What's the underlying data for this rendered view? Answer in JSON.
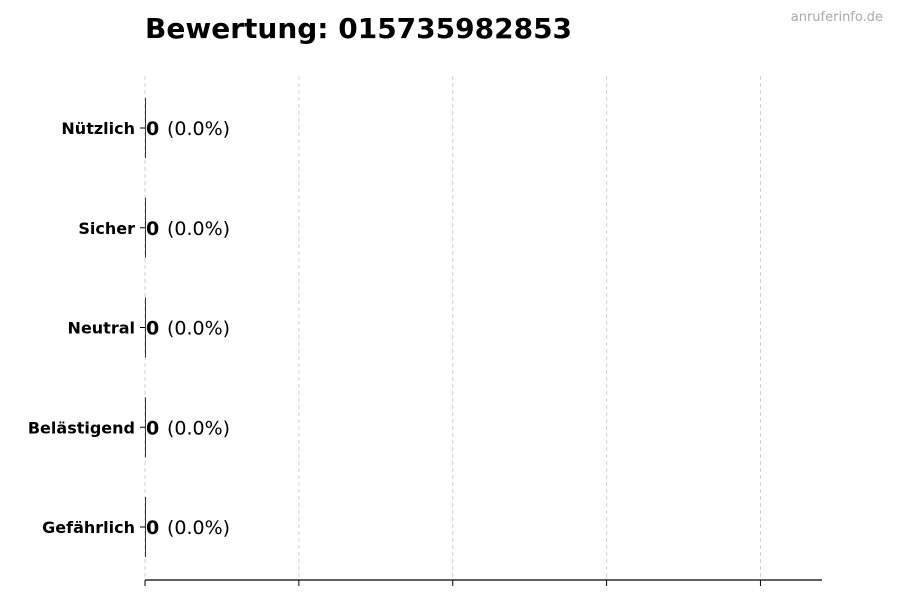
{
  "chart_data": {
    "type": "bar",
    "orientation": "horizontal",
    "title": "Bewertung: 015735982853",
    "categories": [
      "Nützlich",
      "Sicher",
      "Neutral",
      "Belästigend",
      "Gefährlich"
    ],
    "values": [
      0,
      0,
      0,
      0,
      0
    ],
    "data_labels": [
      {
        "count": "0",
        "percent": "(0.0%)"
      },
      {
        "count": "0",
        "percent": "(0.0%)"
      },
      {
        "count": "0",
        "percent": "(0.0%)"
      },
      {
        "count": "0",
        "percent": "(0.0%)"
      },
      {
        "count": "0",
        "percent": "(0.0%)"
      }
    ],
    "xlabel": "",
    "ylabel": "",
    "xlim": [
      0,
      4.4
    ],
    "xticks": [
      0,
      1,
      2,
      3,
      4
    ],
    "x_tick_labels_shown": false,
    "grid": "x dashed",
    "bar_color": "#000000"
  },
  "watermark": "anruferinfo.de"
}
